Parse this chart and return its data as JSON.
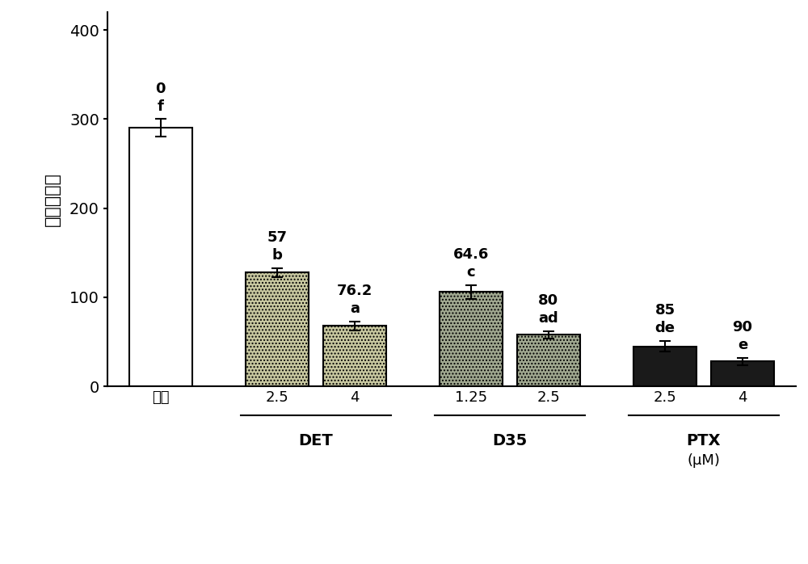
{
  "categories": [
    "溶媒",
    "2.5",
    "4",
    "1.25",
    "2.5",
    "2.5",
    "4"
  ],
  "values": [
    290,
    128,
    68,
    106,
    58,
    45,
    28
  ],
  "errors": [
    10,
    5,
    5,
    8,
    4,
    6,
    4
  ],
  "bar_colors": [
    "#ffffff",
    "#c8c8a0",
    "#c8c8a0",
    "#a0a890",
    "#a0a890",
    "#1a1a1a",
    "#1a1a1a"
  ],
  "bar_edgecolors": [
    "#000000",
    "#000000",
    "#000000",
    "#000000",
    "#000000",
    "#000000",
    "#000000"
  ],
  "hatches": [
    "",
    "....",
    "....",
    "....",
    "....",
    "",
    ""
  ],
  "annotations_top": [
    "0",
    "57",
    "76.2",
    "64.6",
    "80",
    "85",
    "90"
  ],
  "annotations_bottom": [
    "f",
    "b",
    "a",
    "c",
    "ad",
    "de",
    "e"
  ],
  "group_labels": [
    "DET",
    "D35",
    "PTX"
  ],
  "ylabel": "侵袭细胞数",
  "ylim": [
    0,
    420
  ],
  "yticks": [
    0,
    100,
    200,
    300,
    400
  ],
  "xlabel_unit": "(μM)",
  "background_color": "#ffffff",
  "bar_width": 0.65,
  "figsize": [
    10.0,
    6.98
  ],
  "dpi": 100
}
